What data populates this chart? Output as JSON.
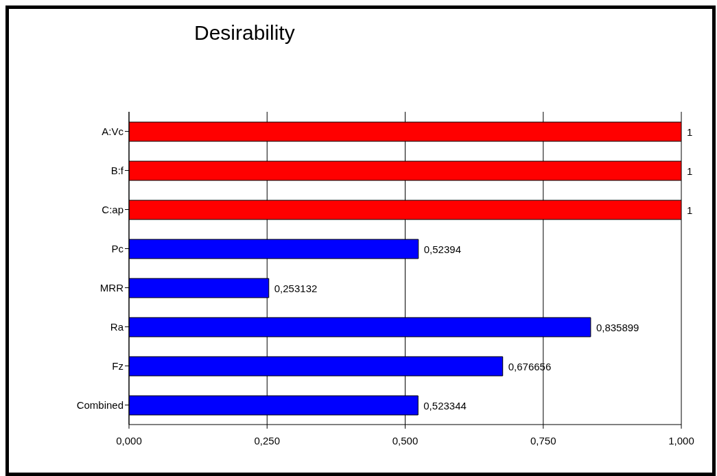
{
  "chart_data": {
    "type": "bar",
    "orientation": "horizontal",
    "title": "Desirability",
    "categories": [
      "A:Vc",
      "B:f",
      "C:ap",
      "Pc",
      "MRR",
      "Ra",
      "Fz",
      "Combined"
    ],
    "values": [
      1,
      1,
      1,
      0.52394,
      0.253132,
      0.835899,
      0.676656,
      0.523344
    ],
    "colors": [
      "#ff0000",
      "#ff0000",
      "#ff0000",
      "#0000ff",
      "#0000ff",
      "#0000ff",
      "#0000ff",
      "#0000ff"
    ],
    "value_labels": [
      "1",
      "1",
      "1",
      "0,52394",
      "0,253132",
      "0,835899",
      "0,676656",
      "0,523344"
    ],
    "xlim": [
      0,
      1
    ],
    "xticks": [
      {
        "value": 0,
        "label": "0,000"
      },
      {
        "value": 0.25,
        "label": "0,250"
      },
      {
        "value": 0.5,
        "label": "0,500"
      },
      {
        "value": 0.75,
        "label": "0,750"
      },
      {
        "value": 1,
        "label": "1,000"
      }
    ],
    "grid": "x"
  }
}
